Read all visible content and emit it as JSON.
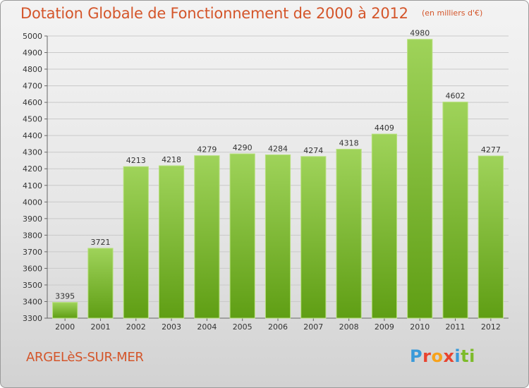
{
  "header": {
    "title": "Dotation Globale de Fonctionnement de 2000 à 2012",
    "unit": "(en milliers d'€)"
  },
  "footer": {
    "commune": "ARGELèS-SUR-MER",
    "brand": "Proxiti",
    "brand_colors": [
      "#3a9ad9",
      "#e8432e",
      "#f7a21b",
      "#e8432e",
      "#3a9ad9",
      "#7dbb2a",
      "#7dbb2a"
    ]
  },
  "colors": {
    "bar_light": "#9fd35a",
    "bar_dark": "#5f9e14",
    "accent": "#d4552a"
  },
  "chart_data": {
    "type": "bar",
    "title": "Dotation Globale de Fonctionnement de 2000 à 2012",
    "ylabel": "(en milliers d'€)",
    "xlabel": "",
    "categories": [
      "2000",
      "2001",
      "2002",
      "2003",
      "2004",
      "2005",
      "2006",
      "2007",
      "2008",
      "2009",
      "2010",
      "2011",
      "2012"
    ],
    "values": [
      3395,
      3721,
      4213,
      4218,
      4279,
      4290,
      4284,
      4274,
      4318,
      4409,
      4980,
      4602,
      4277
    ],
    "ylim": [
      3300,
      5000
    ],
    "yticks": [
      3300,
      3400,
      3500,
      3600,
      3700,
      3800,
      3900,
      4000,
      4100,
      4200,
      4300,
      4400,
      4500,
      4600,
      4700,
      4800,
      4900,
      5000
    ],
    "grid": true,
    "legend": "none"
  }
}
